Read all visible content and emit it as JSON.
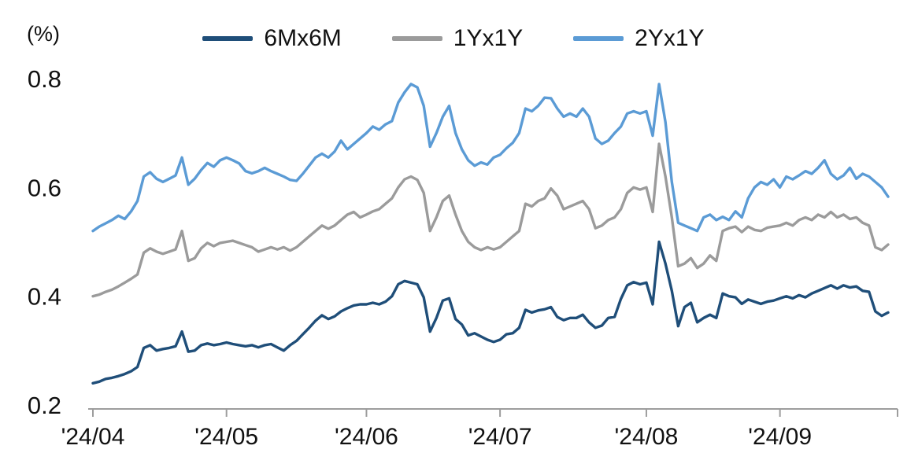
{
  "chart_data": {
    "type": "line",
    "title": "",
    "ylabel": "(%)",
    "xlabel": "",
    "grid": false,
    "legend_position": "top",
    "ylim": [
      0.2,
      0.82
    ],
    "y_ticks": [
      0.2,
      0.4,
      0.6,
      0.8
    ],
    "x_tick_labels": [
      "'24/04",
      "'24/05",
      "'24/06",
      "'24/07",
      "'24/08",
      "'24/09"
    ],
    "x_tick_indices": [
      0,
      21,
      43,
      64,
      87,
      108
    ],
    "n_points": 126,
    "series": [
      {
        "name": "6Mx6M",
        "color": "#1F4E79",
        "values": [
          0.24,
          0.243,
          0.248,
          0.25,
          0.253,
          0.257,
          0.262,
          0.27,
          0.305,
          0.31,
          0.3,
          0.303,
          0.305,
          0.308,
          0.335,
          0.298,
          0.3,
          0.31,
          0.313,
          0.31,
          0.312,
          0.315,
          0.312,
          0.31,
          0.308,
          0.31,
          0.306,
          0.31,
          0.312,
          0.306,
          0.3,
          0.31,
          0.318,
          0.33,
          0.342,
          0.355,
          0.365,
          0.358,
          0.363,
          0.372,
          0.378,
          0.383,
          0.385,
          0.385,
          0.388,
          0.385,
          0.39,
          0.4,
          0.422,
          0.428,
          0.425,
          0.422,
          0.398,
          0.335,
          0.36,
          0.392,
          0.396,
          0.358,
          0.348,
          0.328,
          0.332,
          0.326,
          0.32,
          0.316,
          0.32,
          0.33,
          0.332,
          0.342,
          0.375,
          0.37,
          0.374,
          0.376,
          0.38,
          0.362,
          0.356,
          0.36,
          0.36,
          0.366,
          0.352,
          0.342,
          0.346,
          0.36,
          0.362,
          0.395,
          0.42,
          0.426,
          0.422,
          0.425,
          0.385,
          0.5,
          0.46,
          0.41,
          0.345,
          0.38,
          0.388,
          0.352,
          0.36,
          0.366,
          0.36,
          0.405,
          0.4,
          0.398,
          0.386,
          0.394,
          0.39,
          0.386,
          0.39,
          0.392,
          0.396,
          0.4,
          0.396,
          0.402,
          0.398,
          0.405,
          0.41,
          0.415,
          0.42,
          0.414,
          0.42,
          0.416,
          0.418,
          0.41,
          0.408,
          0.372,
          0.364,
          0.37
        ]
      },
      {
        "name": "1Yx1Y",
        "color": "#9B9B9B",
        "values": [
          0.4,
          0.403,
          0.408,
          0.412,
          0.418,
          0.425,
          0.432,
          0.44,
          0.48,
          0.488,
          0.482,
          0.478,
          0.482,
          0.486,
          0.52,
          0.465,
          0.47,
          0.488,
          0.498,
          0.492,
          0.498,
          0.5,
          0.502,
          0.498,
          0.494,
          0.49,
          0.482,
          0.486,
          0.49,
          0.486,
          0.49,
          0.484,
          0.49,
          0.5,
          0.51,
          0.52,
          0.53,
          0.524,
          0.53,
          0.54,
          0.55,
          0.555,
          0.545,
          0.55,
          0.556,
          0.56,
          0.57,
          0.58,
          0.6,
          0.615,
          0.62,
          0.614,
          0.59,
          0.52,
          0.545,
          0.575,
          0.585,
          0.55,
          0.52,
          0.5,
          0.49,
          0.485,
          0.49,
          0.486,
          0.49,
          0.5,
          0.51,
          0.52,
          0.57,
          0.565,
          0.575,
          0.58,
          0.598,
          0.585,
          0.56,
          0.565,
          0.57,
          0.575,
          0.56,
          0.525,
          0.53,
          0.54,
          0.545,
          0.56,
          0.59,
          0.6,
          0.596,
          0.6,
          0.555,
          0.68,
          0.62,
          0.545,
          0.455,
          0.46,
          0.47,
          0.452,
          0.46,
          0.475,
          0.465,
          0.52,
          0.525,
          0.528,
          0.518,
          0.528,
          0.522,
          0.52,
          0.526,
          0.528,
          0.53,
          0.535,
          0.53,
          0.54,
          0.545,
          0.54,
          0.55,
          0.545,
          0.555,
          0.545,
          0.55,
          0.542,
          0.545,
          0.535,
          0.53,
          0.49,
          0.485,
          0.495
        ]
      },
      {
        "name": "2Yx1Y",
        "color": "#5B9BD5",
        "values": [
          0.52,
          0.528,
          0.534,
          0.54,
          0.548,
          0.542,
          0.556,
          0.575,
          0.62,
          0.628,
          0.616,
          0.61,
          0.616,
          0.622,
          0.655,
          0.605,
          0.616,
          0.632,
          0.645,
          0.638,
          0.65,
          0.655,
          0.65,
          0.644,
          0.63,
          0.626,
          0.63,
          0.636,
          0.63,
          0.625,
          0.62,
          0.614,
          0.612,
          0.625,
          0.64,
          0.655,
          0.662,
          0.655,
          0.666,
          0.686,
          0.67,
          0.68,
          0.69,
          0.7,
          0.712,
          0.706,
          0.716,
          0.722,
          0.756,
          0.775,
          0.79,
          0.784,
          0.75,
          0.675,
          0.7,
          0.73,
          0.75,
          0.7,
          0.67,
          0.65,
          0.64,
          0.646,
          0.642,
          0.655,
          0.66,
          0.672,
          0.682,
          0.7,
          0.745,
          0.74,
          0.75,
          0.765,
          0.764,
          0.745,
          0.73,
          0.736,
          0.73,
          0.745,
          0.73,
          0.69,
          0.68,
          0.686,
          0.7,
          0.712,
          0.736,
          0.74,
          0.736,
          0.74,
          0.695,
          0.79,
          0.72,
          0.61,
          0.535,
          0.53,
          0.525,
          0.52,
          0.545,
          0.55,
          0.54,
          0.546,
          0.54,
          0.556,
          0.545,
          0.58,
          0.6,
          0.61,
          0.605,
          0.615,
          0.6,
          0.62,
          0.615,
          0.622,
          0.63,
          0.625,
          0.636,
          0.65,
          0.625,
          0.615,
          0.622,
          0.636,
          0.616,
          0.625,
          0.62,
          0.61,
          0.6,
          0.583
        ]
      }
    ]
  },
  "axis": {
    "line_color": "#9d9d9d",
    "text_color": "#111111"
  }
}
